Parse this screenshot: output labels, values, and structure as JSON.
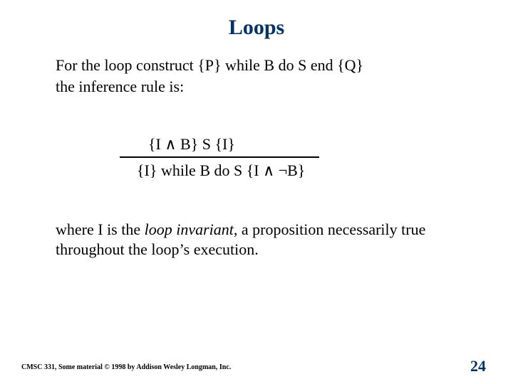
{
  "colors": {
    "title_color": "#003366",
    "body_color": "#000000",
    "background": "#ffffff",
    "pagenum_color": "#003366",
    "rule_line_color": "#000000"
  },
  "fonts": {
    "family": "Times New Roman",
    "title_size_pt": 30,
    "body_size_pt": 22,
    "footer_size_pt": 10,
    "pagenum_size_pt": 22
  },
  "title": "Loops",
  "intro": {
    "line1_prefix": "For the loop construct ",
    "line1_code": "{P} while B do S end {Q}",
    "line2": "the inference rule is:"
  },
  "rule": {
    "premise": "{I ∧ B}  S   {I}",
    "conclusion": "{I} while B do S {I ∧ ¬B}"
  },
  "explain": {
    "part1": "where I is the ",
    "emph": "loop invariant",
    "part2": ", a proposition necessarily true throughout the loop’s execution."
  },
  "footer": {
    "left": "CMSC 331, Some material © 1998 by Addison Wesley Longman, Inc.",
    "page": "24"
  }
}
